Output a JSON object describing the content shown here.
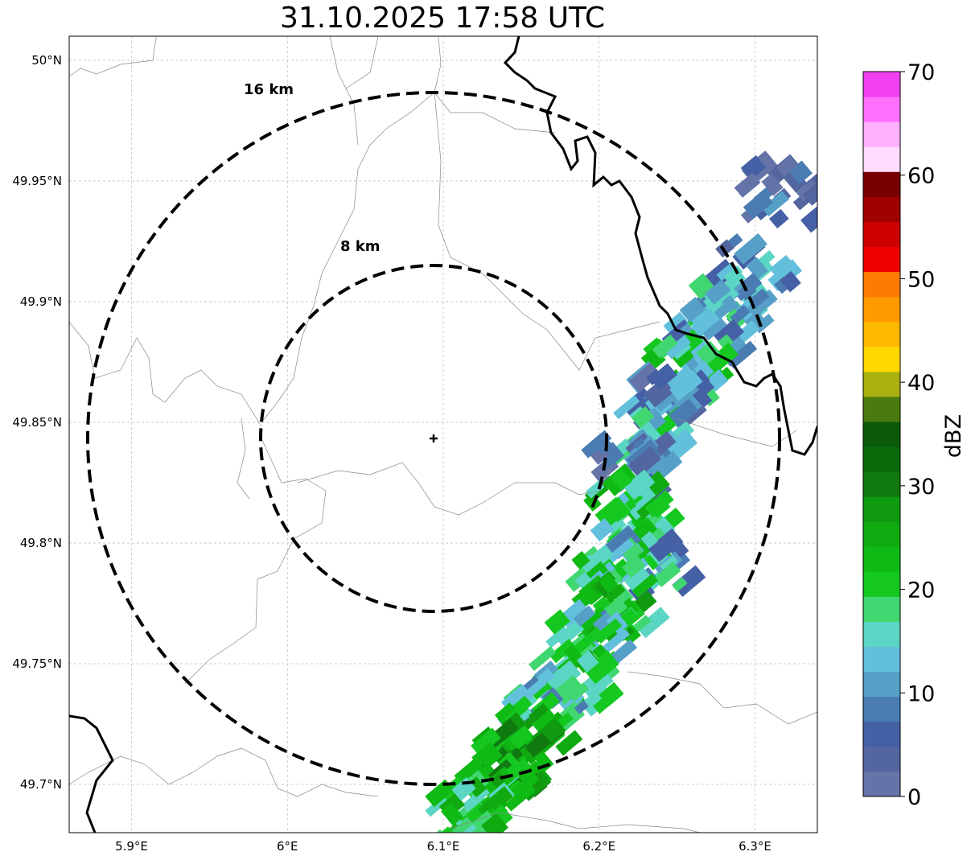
{
  "title": "31.10.2025 17:58 UTC",
  "map": {
    "lon_range": [
      5.86,
      6.34
    ],
    "lat_range": [
      49.68,
      50.01
    ],
    "lon_ticks": [
      {
        "value": 5.9,
        "label": "5.9°E"
      },
      {
        "value": 6.0,
        "label": "6°E"
      },
      {
        "value": 6.1,
        "label": "6.1°E"
      },
      {
        "value": 6.2,
        "label": "6.2°E"
      },
      {
        "value": 6.3,
        "label": "6.3°E"
      }
    ],
    "lat_ticks": [
      {
        "value": 50.0,
        "label": "50°N"
      },
      {
        "value": 49.95,
        "label": "49.95°N"
      },
      {
        "value": 49.9,
        "label": "49.9°N"
      },
      {
        "value": 49.85,
        "label": "49.85°N"
      },
      {
        "value": 49.8,
        "label": "49.8°N"
      },
      {
        "value": 49.75,
        "label": "49.75°N"
      },
      {
        "value": 49.7,
        "label": "49.7°N"
      }
    ],
    "gridlines": true,
    "radar_site": {
      "lon": 6.094,
      "lat": 49.843
    },
    "range_rings": [
      {
        "label": "8 km",
        "radius_km": 8
      },
      {
        "label": "16 km",
        "radius_km": 16
      }
    ]
  },
  "colorbar": {
    "label": "dBZ",
    "min": 0,
    "max": 70,
    "tick_labels": [
      "0",
      "10",
      "20",
      "30",
      "40",
      "50",
      "60",
      "70"
    ],
    "colors": [
      "#6574a8",
      "#5466a0",
      "#4560a5",
      "#4a7cb3",
      "#56a0c8",
      "#62c0dc",
      "#5cd6c4",
      "#40d670",
      "#14c820",
      "#10ba14",
      "#10aa10",
      "#109a10",
      "#107a10",
      "#0a6a0a",
      "#0a5a0a",
      "#4a7a10",
      "#aab010",
      "#ffd800",
      "#ffb800",
      "#ff9a00",
      "#ff7a00",
      "#ee0000",
      "#cc0000",
      "#a00000",
      "#780000",
      "#ffdcff",
      "#ffb0ff",
      "#ff70ff",
      "#f040f0"
    ]
  },
  "precipitation": {
    "description": "dBZ echo band",
    "cells": [
      {
        "lon": 6.318,
        "lat": 49.945,
        "dbz": 5
      },
      {
        "lon": 6.3,
        "lat": 49.912,
        "dbz": 10
      },
      {
        "lon": 6.285,
        "lat": 49.898,
        "dbz": 15
      },
      {
        "lon": 6.27,
        "lat": 49.885,
        "dbz": 12
      },
      {
        "lon": 6.258,
        "lat": 49.872,
        "dbz": 18
      },
      {
        "lon": 6.245,
        "lat": 49.86,
        "dbz": 8
      },
      {
        "lon": 6.235,
        "lat": 49.845,
        "dbz": 14
      },
      {
        "lon": 6.22,
        "lat": 49.83,
        "dbz": 6
      },
      {
        "lon": 6.215,
        "lat": 49.815,
        "dbz": 20
      },
      {
        "lon": 6.225,
        "lat": 49.805,
        "dbz": 18
      },
      {
        "lon": 6.235,
        "lat": 49.79,
        "dbz": 12
      },
      {
        "lon": 6.205,
        "lat": 49.785,
        "dbz": 17
      },
      {
        "lon": 6.215,
        "lat": 49.772,
        "dbz": 22
      },
      {
        "lon": 6.195,
        "lat": 49.762,
        "dbz": 15
      },
      {
        "lon": 6.185,
        "lat": 49.745,
        "dbz": 20
      },
      {
        "lon": 6.168,
        "lat": 49.735,
        "dbz": 14
      },
      {
        "lon": 6.158,
        "lat": 49.722,
        "dbz": 24
      },
      {
        "lon": 6.145,
        "lat": 49.71,
        "dbz": 26
      },
      {
        "lon": 6.13,
        "lat": 49.698,
        "dbz": 22
      },
      {
        "lon": 6.115,
        "lat": 49.688,
        "dbz": 20
      }
    ]
  }
}
